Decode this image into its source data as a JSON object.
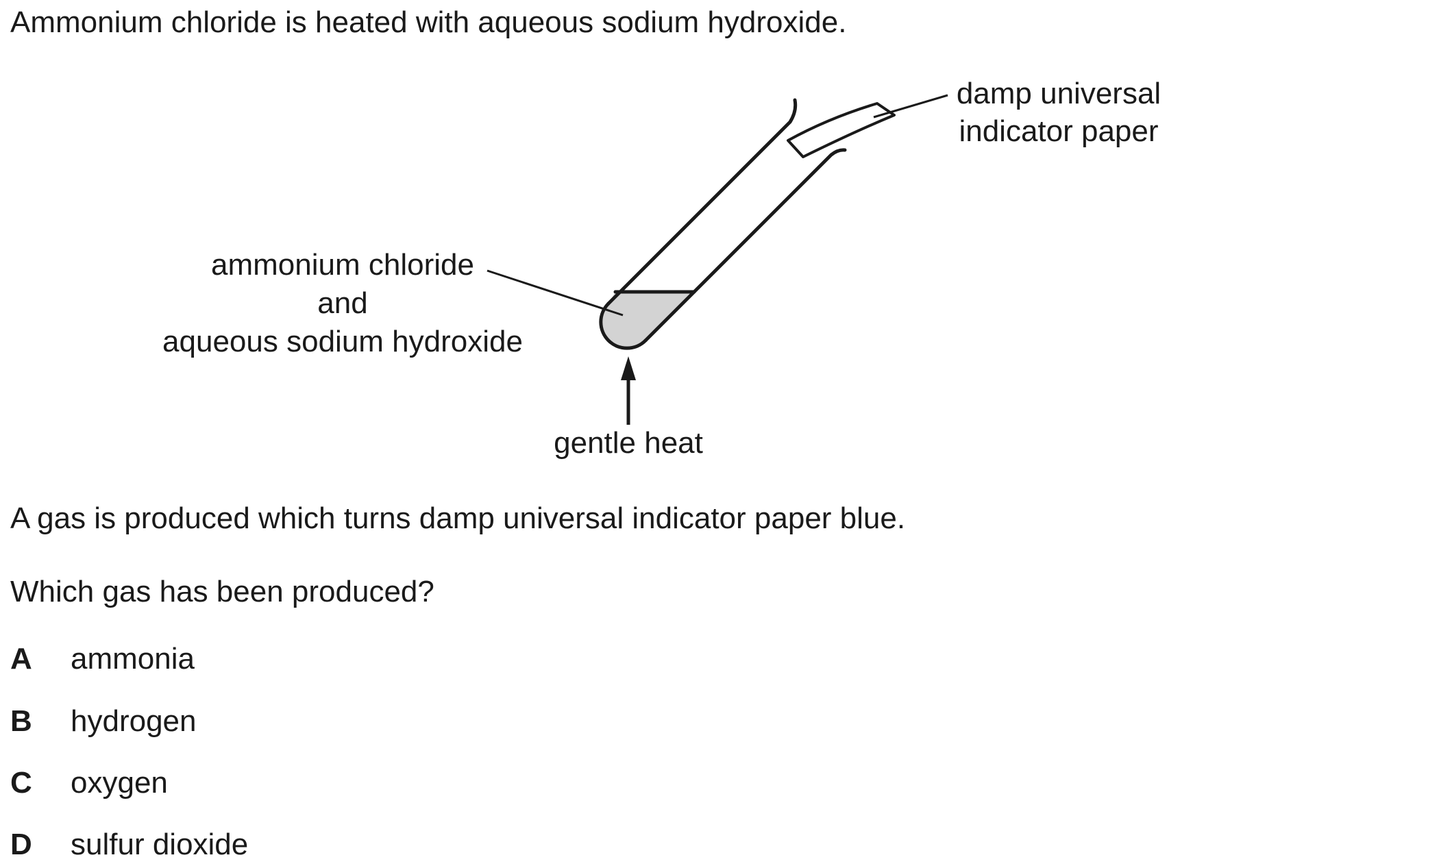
{
  "intro": "Ammonium chloride is heated with aqueous sodium hydroxide.",
  "diagram": {
    "paper_label": {
      "line1": "damp universal",
      "line2": "indicator paper"
    },
    "mixture_label": {
      "line1": "ammonium chloride",
      "line2": "and",
      "line3": "aqueous sodium hydroxide"
    },
    "heat_label": "gentle heat"
  },
  "observation": "A gas is produced which turns damp universal indicator paper blue.",
  "question": "Which gas has been produced?",
  "options": [
    {
      "letter": "A",
      "text": "ammonia"
    },
    {
      "letter": "B",
      "text": "hydrogen"
    },
    {
      "letter": "C",
      "text": "oxygen"
    },
    {
      "letter": "D",
      "text": "sulfur dioxide"
    }
  ]
}
